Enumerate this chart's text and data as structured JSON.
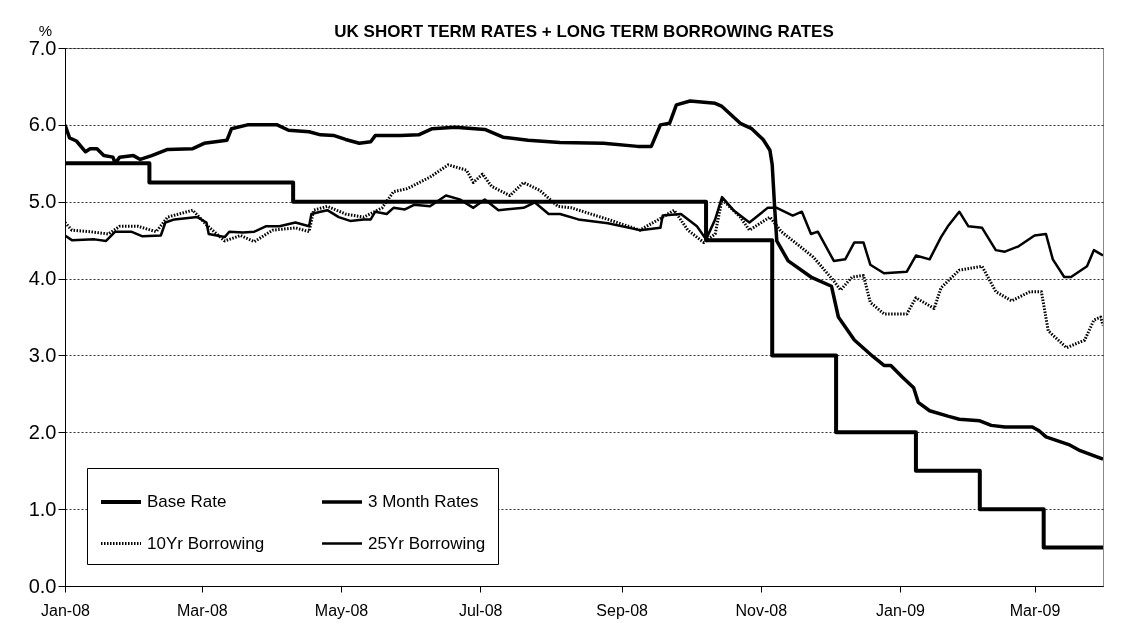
{
  "chart_data": {
    "type": "line",
    "title": "UK SHORT TERM RATES + LONG TERM BORROWING RATES",
    "ylabel": "%",
    "xlim": [
      "2008-01-01",
      "2009-03-31"
    ],
    "xticks": [
      {
        "value": "2008-01-01",
        "label": "Jan-08"
      },
      {
        "value": "2008-03-01",
        "label": "Mar-08"
      },
      {
        "value": "2008-05-01",
        "label": "May-08"
      },
      {
        "value": "2008-07-01",
        "label": "Jul-08"
      },
      {
        "value": "2008-09-01",
        "label": "Sep-08"
      },
      {
        "value": "2008-11-01",
        "label": "Nov-08"
      },
      {
        "value": "2009-01-01",
        "label": "Jan-09"
      },
      {
        "value": "2009-03-01",
        "label": "Mar-09"
      }
    ],
    "ylim": [
      0,
      7
    ],
    "yticks": [
      {
        "value": 0,
        "label": "0.0"
      },
      {
        "value": 1,
        "label": "1.0"
      },
      {
        "value": 2,
        "label": "2.0"
      },
      {
        "value": 3,
        "label": "3.0"
      },
      {
        "value": 4,
        "label": "4.0"
      },
      {
        "value": 5,
        "label": "5.0"
      },
      {
        "value": 6,
        "label": "6.0"
      },
      {
        "value": 7,
        "label": "7.0"
      }
    ],
    "grid": "y",
    "legend": "bottom left",
    "series": [
      {
        "name": "Base Rate",
        "type": "step",
        "color": "#000000",
        "line_style": "solid",
        "x": [
          "2008-01-01",
          "2008-02-07",
          "2008-04-10",
          "2008-10-08",
          "2008-11-06",
          "2008-12-04",
          "2009-01-08",
          "2009-02-05",
          "2009-03-05",
          "2009-03-31"
        ],
        "values": [
          5.5,
          5.25,
          5.0,
          4.5,
          3.0,
          2.0,
          1.5,
          1.0,
          0.5,
          0.5
        ]
      },
      {
        "name": "3 Month Rates",
        "type": "line",
        "color": "#000000",
        "line_style": "solid",
        "x": [
          "2008-01-01",
          "2008-01-03",
          "2008-01-06",
          "2008-01-10",
          "2008-01-12",
          "2008-01-15",
          "2008-01-18",
          "2008-01-22",
          "2008-01-23",
          "2008-01-25",
          "2008-01-31",
          "2008-02-03",
          "2008-02-08",
          "2008-02-15",
          "2008-02-26",
          "2008-03-02",
          "2008-03-12",
          "2008-03-14",
          "2008-03-21",
          "2008-04-03",
          "2008-04-08",
          "2008-04-17",
          "2008-04-22",
          "2008-04-28",
          "2008-05-03",
          "2008-05-09",
          "2008-05-14",
          "2008-05-16",
          "2008-05-27",
          "2008-06-04",
          "2008-06-10",
          "2008-06-20",
          "2008-07-03",
          "2008-07-11",
          "2008-07-22",
          "2008-08-05",
          "2008-08-24",
          "2008-09-08",
          "2008-09-14",
          "2008-09-18",
          "2008-09-22",
          "2008-09-25",
          "2008-10-01",
          "2008-10-12",
          "2008-10-15",
          "2008-10-23",
          "2008-10-28",
          "2008-11-02",
          "2008-11-05",
          "2008-11-06",
          "2008-11-07",
          "2008-11-08",
          "2008-11-13",
          "2008-11-23",
          "2008-12-02",
          "2008-12-05",
          "2008-12-12",
          "2008-12-20",
          "2008-12-25",
          "2008-12-28",
          "2009-01-02",
          "2009-01-07",
          "2009-01-09",
          "2009-01-14",
          "2009-01-22",
          "2009-01-27",
          "2009-02-05",
          "2009-02-10",
          "2009-02-16",
          "2009-02-28",
          "2009-03-03",
          "2009-03-06",
          "2009-03-16",
          "2009-03-21",
          "2009-03-31"
        ],
        "values": [
          6.0,
          5.83,
          5.79,
          5.65,
          5.69,
          5.69,
          5.6,
          5.58,
          5.5,
          5.58,
          5.6,
          5.55,
          5.6,
          5.68,
          5.69,
          5.76,
          5.8,
          5.95,
          6.0,
          6.0,
          5.93,
          5.91,
          5.87,
          5.86,
          5.81,
          5.76,
          5.78,
          5.86,
          5.86,
          5.87,
          5.95,
          5.97,
          5.94,
          5.84,
          5.8,
          5.77,
          5.76,
          5.72,
          5.72,
          6.0,
          6.02,
          6.26,
          6.31,
          6.28,
          6.24,
          6.02,
          5.95,
          5.81,
          5.67,
          5.48,
          4.96,
          4.49,
          4.23,
          4.02,
          3.9,
          3.5,
          3.2,
          2.99,
          2.87,
          2.87,
          2.72,
          2.58,
          2.39,
          2.28,
          2.21,
          2.17,
          2.15,
          2.09,
          2.07,
          2.07,
          2.02,
          1.94,
          1.84,
          1.76,
          1.65
        ]
      },
      {
        "name": "10Yr Borrowing",
        "type": "line",
        "color": "#000000",
        "line_style": "dotted",
        "x": [
          "2008-01-01",
          "2008-01-04",
          "2008-01-12",
          "2008-01-20",
          "2008-01-25",
          "2008-02-02",
          "2008-02-10",
          "2008-02-15",
          "2008-02-26",
          "2008-03-03",
          "2008-03-11",
          "2008-03-18",
          "2008-03-24",
          "2008-04-01",
          "2008-04-11",
          "2008-04-17",
          "2008-04-19",
          "2008-04-25",
          "2008-05-03",
          "2008-05-11",
          "2008-05-19",
          "2008-05-24",
          "2008-05-30",
          "2008-06-09",
          "2008-06-17",
          "2008-06-25",
          "2008-06-28",
          "2008-07-02",
          "2008-07-06",
          "2008-07-14",
          "2008-07-20",
          "2008-07-27",
          "2008-08-04",
          "2008-08-10",
          "2008-08-26",
          "2008-09-09",
          "2008-09-19",
          "2008-09-24",
          "2008-09-30",
          "2008-10-07",
          "2008-10-12",
          "2008-10-15",
          "2008-10-23",
          "2008-10-27",
          "2008-11-05",
          "2008-11-10",
          "2008-11-16",
          "2008-11-24",
          "2008-12-03",
          "2008-12-06",
          "2008-12-11",
          "2008-12-16",
          "2008-12-19",
          "2008-12-25",
          "2009-01-04",
          "2009-01-08",
          "2009-01-16",
          "2009-01-19",
          "2009-01-27",
          "2009-02-06",
          "2009-02-12",
          "2009-02-19",
          "2009-02-27",
          "2009-03-04",
          "2009-03-07",
          "2009-03-15",
          "2009-03-23",
          "2009-03-27",
          "2009-03-30",
          "2009-03-31"
        ],
        "values": [
          4.73,
          4.63,
          4.61,
          4.58,
          4.68,
          4.68,
          4.61,
          4.8,
          4.89,
          4.7,
          4.49,
          4.56,
          4.48,
          4.63,
          4.66,
          4.61,
          4.89,
          4.94,
          4.84,
          4.8,
          4.92,
          5.13,
          5.17,
          5.32,
          5.48,
          5.41,
          5.25,
          5.36,
          5.2,
          5.08,
          5.25,
          5.15,
          4.94,
          4.92,
          4.77,
          4.63,
          4.8,
          4.89,
          4.63,
          4.47,
          4.58,
          5.03,
          4.8,
          4.63,
          4.8,
          4.61,
          4.47,
          4.28,
          3.97,
          3.85,
          4.02,
          4.04,
          3.69,
          3.54,
          3.54,
          3.75,
          3.61,
          3.88,
          4.11,
          4.16,
          3.83,
          3.71,
          3.83,
          3.83,
          3.32,
          3.1,
          3.2,
          3.46,
          3.5,
          3.39
        ]
      },
      {
        "name": "25Yr Borrowing",
        "type": "line",
        "color": "#000000",
        "line_style": "solid",
        "x": [
          "2008-01-01",
          "2008-01-04",
          "2008-01-14",
          "2008-01-19",
          "2008-01-23",
          "2008-01-30",
          "2008-02-04",
          "2008-02-12",
          "2008-02-14",
          "2008-02-18",
          "2008-02-28",
          "2008-03-03",
          "2008-03-04",
          "2008-03-11",
          "2008-03-13",
          "2008-03-19",
          "2008-03-24",
          "2008-03-29",
          "2008-04-04",
          "2008-04-11",
          "2008-04-17",
          "2008-04-18",
          "2008-04-22",
          "2008-04-25",
          "2008-04-30",
          "2008-05-05",
          "2008-05-11",
          "2008-05-14",
          "2008-05-16",
          "2008-05-21",
          "2008-05-24",
          "2008-05-29",
          "2008-06-02",
          "2008-06-09",
          "2008-06-16",
          "2008-06-22",
          "2008-06-28",
          "2008-07-03",
          "2008-07-09",
          "2008-07-20",
          "2008-07-25",
          "2008-07-31",
          "2008-08-05",
          "2008-08-13",
          "2008-08-26",
          "2008-09-09",
          "2008-09-18",
          "2008-09-19",
          "2008-09-27",
          "2008-10-04",
          "2008-10-08",
          "2008-10-12",
          "2008-10-15",
          "2008-10-20",
          "2008-10-27",
          "2008-11-04",
          "2008-11-08",
          "2008-11-15",
          "2008-11-19",
          "2008-11-23",
          "2008-11-26",
          "2008-12-03",
          "2008-12-08",
          "2008-12-12",
          "2008-12-16",
          "2008-12-19",
          "2008-12-25",
          "2009-01-04",
          "2009-01-08",
          "2009-01-14",
          "2009-01-19",
          "2009-01-22",
          "2009-01-27",
          "2009-01-31",
          "2009-02-06",
          "2009-02-12",
          "2009-02-16",
          "2009-02-22",
          "2009-03-01",
          "2009-03-06",
          "2009-03-09",
          "2009-03-14",
          "2009-03-17",
          "2009-03-24",
          "2009-03-27",
          "2009-03-31"
        ],
        "values": [
          4.56,
          4.5,
          4.51,
          4.49,
          4.61,
          4.61,
          4.55,
          4.56,
          4.73,
          4.77,
          4.8,
          4.73,
          4.58,
          4.54,
          4.61,
          4.6,
          4.61,
          4.68,
          4.68,
          4.73,
          4.68,
          4.84,
          4.87,
          4.89,
          4.8,
          4.75,
          4.77,
          4.77,
          4.87,
          4.84,
          4.92,
          4.9,
          4.96,
          4.94,
          5.08,
          5.03,
          4.92,
          5.03,
          4.89,
          4.92,
          4.99,
          4.84,
          4.84,
          4.77,
          4.72,
          4.63,
          4.66,
          4.82,
          4.84,
          4.68,
          4.51,
          4.77,
          5.06,
          4.89,
          4.73,
          4.92,
          4.92,
          4.82,
          4.87,
          4.58,
          4.61,
          4.23,
          4.25,
          4.47,
          4.47,
          4.18,
          4.07,
          4.09,
          4.3,
          4.25,
          4.54,
          4.68,
          4.87,
          4.68,
          4.66,
          4.37,
          4.35,
          4.42,
          4.56,
          4.58,
          4.25,
          4.02,
          4.02,
          4.16,
          4.37,
          4.3
        ]
      }
    ]
  }
}
